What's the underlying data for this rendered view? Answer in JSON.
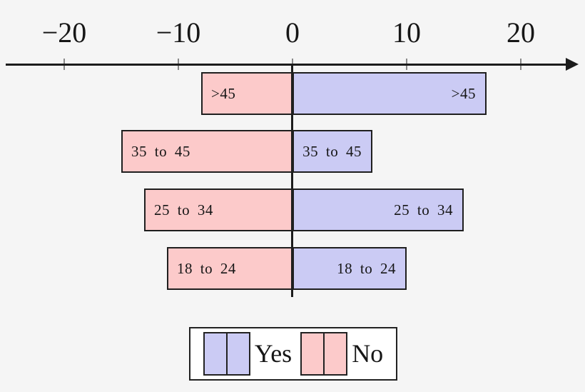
{
  "chart_data": {
    "type": "bar",
    "orientation": "horizontal-diverging",
    "title": "",
    "xlabel": "",
    "ylabel": "",
    "categories": [
      ">45",
      "35 to 45",
      "25 to 34",
      "18 to 24"
    ],
    "series": [
      {
        "name": "Yes",
        "color": "#cbcbf4",
        "values": [
          17,
          7,
          15,
          10
        ]
      },
      {
        "name": "No",
        "color": "#fccaca",
        "values": [
          -8,
          -15,
          -13,
          -11
        ]
      }
    ],
    "bar_labels": [
      ">45",
      "35 to 45",
      "25 to 34",
      "18 to 24"
    ],
    "xlim": [
      -25,
      25
    ],
    "x_ticks": [
      -20,
      -10,
      0,
      10,
      20
    ],
    "x_tick_labels": [
      "−20",
      "−10",
      "0",
      "10",
      "20"
    ],
    "grid": false,
    "axis_arrow": "right",
    "legend_position": "bottom-center"
  },
  "legend": {
    "items": [
      {
        "label": "Yes",
        "color": "#cbcbf4"
      },
      {
        "label": "No",
        "color": "#fccaca"
      }
    ]
  },
  "colors": {
    "background": "#f5f5f5",
    "bar_border": "#1f1f1f",
    "axis": "#1c1c1c",
    "tick": "#8a8a8a",
    "legend_background": "#ffffff"
  }
}
